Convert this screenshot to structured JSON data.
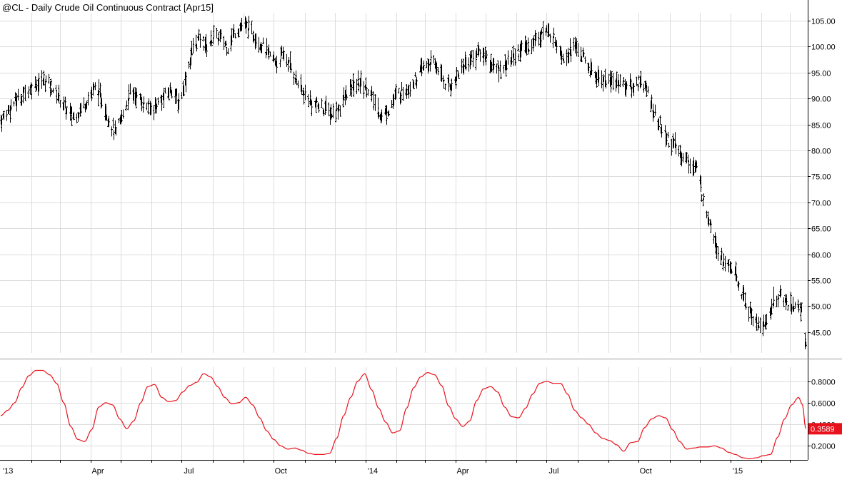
{
  "title": "@CL - Daily  Crude Oil Continuous Contract [Apr15]",
  "x_tick_labels": [
    "'13",
    "Apr",
    "Jul",
    "Oct",
    "'14",
    "Apr",
    "Jul",
    "Oct",
    "'15"
  ],
  "chart_data": [
    {
      "type": "ohlc",
      "series": [
        {
          "name": "@CL",
          "color": "#000000"
        }
      ],
      "x_range": [
        "2013-01-01",
        "2015-03-17"
      ],
      "ylim": [
        41,
        106.5
      ],
      "y_ticks": [
        "45.00",
        "50.00",
        "55.00",
        "60.00",
        "65.00",
        "70.00",
        "75.00",
        "80.00",
        "85.00",
        "90.00",
        "95.00",
        "100.00",
        "105.00"
      ],
      "grid": true,
      "closes_weekly": [
        [
          "2013-01-02",
          86.0
        ],
        [
          "2013-01-11",
          88.5
        ],
        [
          "2013-01-18",
          90.0
        ],
        [
          "2013-01-25",
          91.0
        ],
        [
          "2013-02-01",
          92.5
        ],
        [
          "2013-02-08",
          93.0
        ],
        [
          "2013-02-15",
          93.5
        ],
        [
          "2013-02-22",
          92.0
        ],
        [
          "2013-03-01",
          90.0
        ],
        [
          "2013-03-08",
          87.5
        ],
        [
          "2013-03-15",
          86.5
        ],
        [
          "2013-03-22",
          88.0
        ],
        [
          "2013-03-29",
          90.0
        ],
        [
          "2013-04-05",
          92.0
        ],
        [
          "2013-04-12",
          90.0
        ],
        [
          "2013-04-19",
          86.0
        ],
        [
          "2013-04-26",
          83.0
        ],
        [
          "2013-05-03",
          87.0
        ],
        [
          "2013-05-10",
          91.0
        ],
        [
          "2013-05-17",
          90.5
        ],
        [
          "2013-05-24",
          89.0
        ],
        [
          "2013-05-31",
          88.0
        ],
        [
          "2013-06-07",
          89.0
        ],
        [
          "2013-06-14",
          90.5
        ],
        [
          "2013-06-21",
          92.0
        ],
        [
          "2013-06-28",
          89.0
        ],
        [
          "2013-07-05",
          94.0
        ],
        [
          "2013-07-12",
          100.0
        ],
        [
          "2013-07-19",
          101.5
        ],
        [
          "2013-07-26",
          100.0
        ],
        [
          "2013-08-02",
          102.0
        ],
        [
          "2013-08-09",
          101.5
        ],
        [
          "2013-08-16",
          100.0
        ],
        [
          "2013-08-23",
          103.0
        ],
        [
          "2013-08-30",
          104.0
        ],
        [
          "2013-09-06",
          103.5
        ],
        [
          "2013-09-13",
          102.0
        ],
        [
          "2013-09-20",
          100.0
        ],
        [
          "2013-09-27",
          98.0
        ],
        [
          "2013-10-04",
          97.0
        ],
        [
          "2013-10-11",
          98.5
        ],
        [
          "2013-10-18",
          96.0
        ],
        [
          "2013-10-25",
          93.0
        ],
        [
          "2013-11-01",
          90.5
        ],
        [
          "2013-11-08",
          89.0
        ],
        [
          "2013-11-15",
          88.5
        ],
        [
          "2013-11-22",
          88.0
        ],
        [
          "2013-11-29",
          87.0
        ],
        [
          "2013-12-06",
          88.5
        ],
        [
          "2013-12-13",
          91.0
        ],
        [
          "2013-12-20",
          92.5
        ],
        [
          "2013-12-27",
          93.0
        ],
        [
          "2014-01-03",
          92.0
        ],
        [
          "2014-01-10",
          89.0
        ],
        [
          "2014-01-17",
          86.5
        ],
        [
          "2014-01-24",
          88.0
        ],
        [
          "2014-01-31",
          90.5
        ],
        [
          "2014-02-07",
          91.5
        ],
        [
          "2014-02-14",
          92.5
        ],
        [
          "2014-02-21",
          94.0
        ],
        [
          "2014-02-28",
          96.0
        ],
        [
          "2014-03-07",
          97.0
        ],
        [
          "2014-03-14",
          96.0
        ],
        [
          "2014-03-21",
          93.0
        ],
        [
          "2014-03-28",
          92.5
        ],
        [
          "2014-04-04",
          95.0
        ],
        [
          "2014-04-11",
          97.0
        ],
        [
          "2014-04-18",
          98.0
        ],
        [
          "2014-04-25",
          99.0
        ],
        [
          "2014-05-02",
          98.0
        ],
        [
          "2014-05-09",
          96.0
        ],
        [
          "2014-05-16",
          95.5
        ],
        [
          "2014-05-23",
          97.0
        ],
        [
          "2014-05-30",
          98.5
        ],
        [
          "2014-06-06",
          99.5
        ],
        [
          "2014-06-13",
          100.0
        ],
        [
          "2014-06-20",
          101.5
        ],
        [
          "2014-06-27",
          103.0
        ],
        [
          "2014-07-04",
          102.5
        ],
        [
          "2014-07-11",
          101.0
        ],
        [
          "2014-07-18",
          98.0
        ],
        [
          "2014-07-25",
          99.5
        ],
        [
          "2014-08-01",
          100.0
        ],
        [
          "2014-08-08",
          97.0
        ],
        [
          "2014-08-15",
          95.0
        ],
        [
          "2014-08-22",
          94.0
        ],
        [
          "2014-08-29",
          93.5
        ],
        [
          "2014-09-05",
          93.0
        ],
        [
          "2014-09-12",
          93.5
        ],
        [
          "2014-09-19",
          92.5
        ],
        [
          "2014-09-26",
          92.0
        ],
        [
          "2014-10-03",
          94.0
        ],
        [
          "2014-10-10",
          91.0
        ],
        [
          "2014-10-17",
          87.0
        ],
        [
          "2014-10-24",
          84.0
        ],
        [
          "2014-10-31",
          82.0
        ],
        [
          "2014-11-07",
          80.5
        ],
        [
          "2014-11-14",
          79.0
        ],
        [
          "2014-11-21",
          77.5
        ],
        [
          "2014-11-28",
          76.5
        ],
        [
          "2014-12-05",
          70.0
        ],
        [
          "2014-12-12",
          66.0
        ],
        [
          "2014-12-19",
          61.0
        ],
        [
          "2014-12-26",
          58.0
        ],
        [
          "2015-01-02",
          57.5
        ],
        [
          "2015-01-09",
          54.0
        ],
        [
          "2015-01-16",
          50.5
        ],
        [
          "2015-01-23",
          48.0
        ],
        [
          "2015-01-30",
          46.0
        ],
        [
          "2015-02-06",
          47.0
        ],
        [
          "2015-02-13",
          51.0
        ],
        [
          "2015-02-20",
          52.0
        ],
        [
          "2015-02-27",
          50.5
        ],
        [
          "2015-03-06",
          50.0
        ],
        [
          "2015-03-13",
          49.0
        ],
        [
          "2015-03-17",
          43.0
        ]
      ]
    },
    {
      "type": "line",
      "series": [
        {
          "name": "indicator",
          "color": "#e8121c"
        }
      ],
      "ylim": [
        0.07,
        0.93
      ],
      "y_ticks": [
        "0.2000",
        "0.4000",
        "0.6000",
        "0.8000"
      ],
      "last_value_label": "0.3589",
      "grid": true,
      "points": [
        [
          "2013-01-01",
          0.48
        ],
        [
          "2013-01-08",
          0.53
        ],
        [
          "2013-01-15",
          0.6
        ],
        [
          "2013-01-22",
          0.74
        ],
        [
          "2013-01-29",
          0.85
        ],
        [
          "2013-02-05",
          0.9
        ],
        [
          "2013-02-12",
          0.9
        ],
        [
          "2013-02-19",
          0.86
        ],
        [
          "2013-02-26",
          0.78
        ],
        [
          "2013-03-05",
          0.6
        ],
        [
          "2013-03-12",
          0.38
        ],
        [
          "2013-03-19",
          0.26
        ],
        [
          "2013-03-26",
          0.24
        ],
        [
          "2013-04-02",
          0.35
        ],
        [
          "2013-04-09",
          0.56
        ],
        [
          "2013-04-16",
          0.6
        ],
        [
          "2013-04-23",
          0.58
        ],
        [
          "2013-04-30",
          0.45
        ],
        [
          "2013-05-07",
          0.36
        ],
        [
          "2013-05-14",
          0.43
        ],
        [
          "2013-05-21",
          0.6
        ],
        [
          "2013-05-28",
          0.75
        ],
        [
          "2013-06-04",
          0.77
        ],
        [
          "2013-06-11",
          0.65
        ],
        [
          "2013-06-18",
          0.61
        ],
        [
          "2013-06-25",
          0.62
        ],
        [
          "2013-07-02",
          0.7
        ],
        [
          "2013-07-09",
          0.76
        ],
        [
          "2013-07-16",
          0.79
        ],
        [
          "2013-07-23",
          0.87
        ],
        [
          "2013-07-30",
          0.84
        ],
        [
          "2013-08-06",
          0.75
        ],
        [
          "2013-08-13",
          0.65
        ],
        [
          "2013-08-20",
          0.59
        ],
        [
          "2013-08-27",
          0.6
        ],
        [
          "2013-09-03",
          0.65
        ],
        [
          "2013-09-10",
          0.58
        ],
        [
          "2013-09-17",
          0.46
        ],
        [
          "2013-09-24",
          0.34
        ],
        [
          "2013-10-01",
          0.26
        ],
        [
          "2013-10-08",
          0.2
        ],
        [
          "2013-10-15",
          0.17
        ],
        [
          "2013-10-22",
          0.18
        ],
        [
          "2013-10-29",
          0.16
        ],
        [
          "2013-11-05",
          0.13
        ],
        [
          "2013-11-12",
          0.12
        ],
        [
          "2013-11-19",
          0.12
        ],
        [
          "2013-11-26",
          0.13
        ],
        [
          "2013-12-03",
          0.27
        ],
        [
          "2013-12-10",
          0.48
        ],
        [
          "2013-12-17",
          0.65
        ],
        [
          "2013-12-24",
          0.8
        ],
        [
          "2013-12-31",
          0.87
        ],
        [
          "2014-01-07",
          0.72
        ],
        [
          "2014-01-14",
          0.55
        ],
        [
          "2014-01-21",
          0.42
        ],
        [
          "2014-01-28",
          0.32
        ],
        [
          "2014-02-04",
          0.34
        ],
        [
          "2014-02-11",
          0.55
        ],
        [
          "2014-02-18",
          0.74
        ],
        [
          "2014-02-25",
          0.84
        ],
        [
          "2014-03-04",
          0.88
        ],
        [
          "2014-03-11",
          0.86
        ],
        [
          "2014-03-18",
          0.76
        ],
        [
          "2014-03-25",
          0.57
        ],
        [
          "2014-04-01",
          0.45
        ],
        [
          "2014-04-08",
          0.38
        ],
        [
          "2014-04-15",
          0.43
        ],
        [
          "2014-04-22",
          0.62
        ],
        [
          "2014-04-29",
          0.73
        ],
        [
          "2014-05-06",
          0.75
        ],
        [
          "2014-05-13",
          0.7
        ],
        [
          "2014-05-20",
          0.56
        ],
        [
          "2014-05-27",
          0.47
        ],
        [
          "2014-06-03",
          0.46
        ],
        [
          "2014-06-10",
          0.55
        ],
        [
          "2014-06-17",
          0.68
        ],
        [
          "2014-06-24",
          0.78
        ],
        [
          "2014-07-01",
          0.8
        ],
        [
          "2014-07-08",
          0.78
        ],
        [
          "2014-07-15",
          0.78
        ],
        [
          "2014-07-22",
          0.68
        ],
        [
          "2014-07-29",
          0.53
        ],
        [
          "2014-08-05",
          0.46
        ],
        [
          "2014-08-12",
          0.4
        ],
        [
          "2014-08-19",
          0.32
        ],
        [
          "2014-08-26",
          0.27
        ],
        [
          "2014-09-02",
          0.25
        ],
        [
          "2014-09-09",
          0.21
        ],
        [
          "2014-09-16",
          0.15
        ],
        [
          "2014-09-23",
          0.23
        ],
        [
          "2014-09-30",
          0.24
        ],
        [
          "2014-10-07",
          0.37
        ],
        [
          "2014-10-14",
          0.45
        ],
        [
          "2014-10-21",
          0.48
        ],
        [
          "2014-10-28",
          0.46
        ],
        [
          "2014-11-04",
          0.35
        ],
        [
          "2014-11-11",
          0.24
        ],
        [
          "2014-11-18",
          0.17
        ],
        [
          "2014-11-25",
          0.18
        ],
        [
          "2014-12-02",
          0.19
        ],
        [
          "2014-12-09",
          0.19
        ],
        [
          "2014-12-16",
          0.2
        ],
        [
          "2014-12-23",
          0.18
        ],
        [
          "2014-12-30",
          0.14
        ],
        [
          "2015-01-06",
          0.12
        ],
        [
          "2015-01-13",
          0.09
        ],
        [
          "2015-01-20",
          0.08
        ],
        [
          "2015-01-27",
          0.09
        ],
        [
          "2015-02-03",
          0.11
        ],
        [
          "2015-02-10",
          0.12
        ],
        [
          "2015-02-17",
          0.28
        ],
        [
          "2015-02-24",
          0.45
        ],
        [
          "2015-03-03",
          0.58
        ],
        [
          "2015-03-10",
          0.65
        ],
        [
          "2015-03-14",
          0.58
        ],
        [
          "2015-03-17",
          0.36
        ]
      ]
    }
  ]
}
